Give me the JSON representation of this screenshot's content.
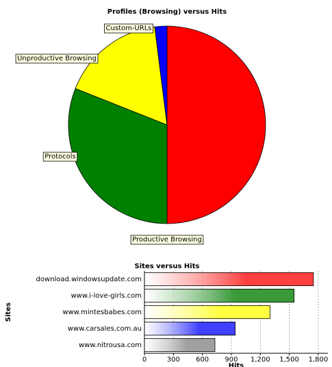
{
  "chart_data": [
    {
      "type": "pie",
      "title": "Profiles (Browsing) versus Hits",
      "categories": [
        "Productive Browsing",
        "Protocols",
        "Unproductive Browsing",
        "Custom-URLs"
      ],
      "values": [
        50,
        31,
        17,
        2
      ],
      "colors": [
        "#ff0000",
        "#008000",
        "#ffff00",
        "#0000ff"
      ]
    },
    {
      "type": "bar",
      "orientation": "horizontal",
      "title": "Sites versus Hits",
      "categories": [
        "download.windowsupdate.com",
        "www.i-love-girls.com",
        "www.mintesbabes.com",
        "www.carsales.com.au",
        "www.nitrousa.com"
      ],
      "values": [
        1750,
        1550,
        1300,
        940,
        730
      ],
      "colors": [
        "#ff4040",
        "#3a9a3a",
        "#ffff40",
        "#4040ff",
        "#a0a0a0"
      ],
      "xlim": [
        0,
        1900
      ],
      "xticks": [
        0,
        300,
        600,
        900,
        {
          "value": 1200,
          "label": "1,200"
        },
        {
          "value": 1500,
          "label": "1,500"
        },
        {
          "value": 1800,
          "label": "1,800"
        }
      ],
      "xlabel": "Hits",
      "ylabel": "Sites",
      "grid": true
    }
  ]
}
